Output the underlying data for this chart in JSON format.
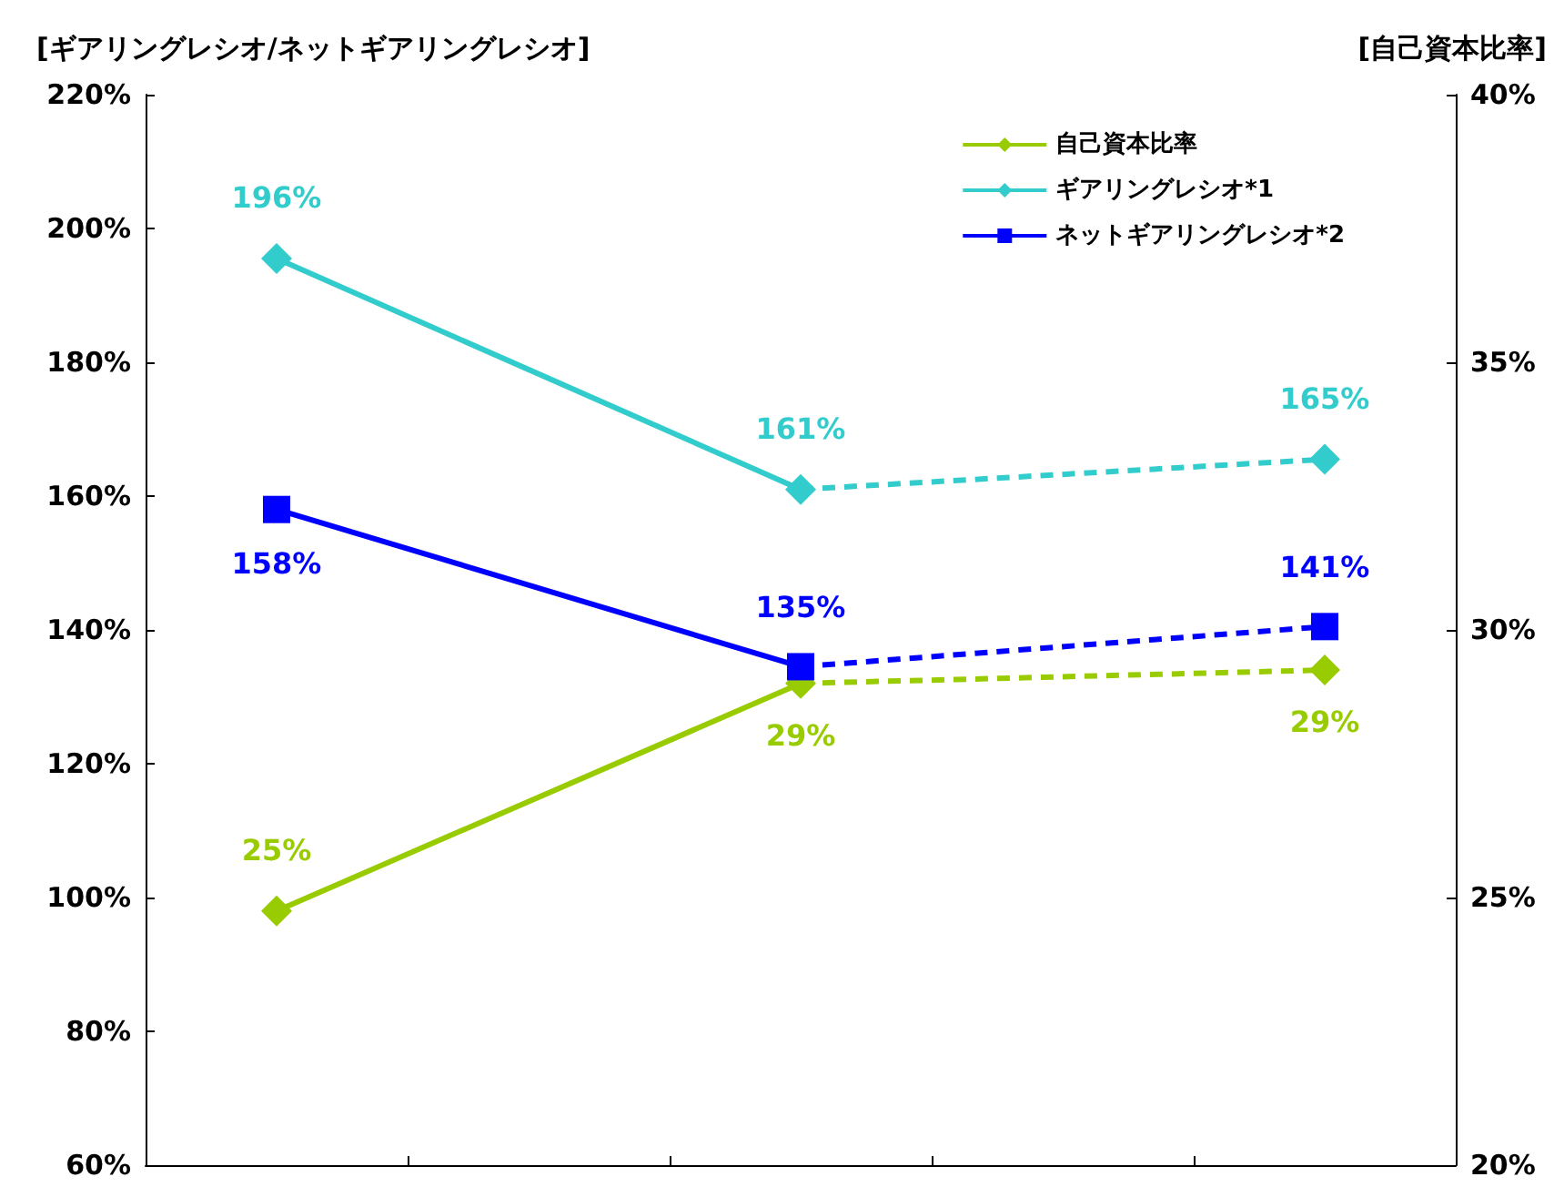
{
  "chart_data": {
    "type": "line",
    "ylabel": "[ギアリングレシオ/ネットギアリングレシオ]",
    "y2label": "[自己資本比率]",
    "categories": [
      null,
      null,
      null
    ],
    "series": [
      {
        "name": "自己資本比率",
        "color": "#99cc00",
        "axis": "y2",
        "marker": "diamond",
        "line_style": "dashed",
        "values": [
          24.75,
          29.0,
          29.25
        ],
        "value_labels": [
          "25%",
          "29%",
          "29%"
        ]
      },
      {
        "name": "ギアリングレシオ*1",
        "color": "#33cccc",
        "marker": "diamond",
        "line_style": "dashed",
        "values": [
          195.5,
          161,
          165.5
        ],
        "value_labels": [
          "196%",
          "161%",
          "165%"
        ]
      },
      {
        "name": "ネットギアリングレシオ*2",
        "color": "#0000ff",
        "marker": "square",
        "line_style": "dashed",
        "values": [
          158,
          134.5,
          140.5
        ],
        "value_labels": [
          "158%",
          "135%",
          "141%"
        ]
      }
    ],
    "ylim": [
      60,
      220
    ],
    "yticks": [
      {
        "value": 60,
        "label": "60%"
      },
      {
        "value": 80,
        "label": "80%"
      },
      {
        "value": 100,
        "label": "100%"
      },
      {
        "value": 120,
        "label": "120%"
      },
      {
        "value": 140,
        "label": "140%"
      },
      {
        "value": 160,
        "label": "160%"
      },
      {
        "value": 180,
        "label": "180%"
      },
      {
        "value": 200,
        "label": "200%"
      },
      {
        "value": 220,
        "label": "220%"
      }
    ],
    "y2lim": [
      20,
      40
    ],
    "y2ticks": [
      {
        "value": 20,
        "label": "20%"
      },
      {
        "value": 25,
        "label": "25%"
      },
      {
        "value": 30,
        "label": "30%"
      },
      {
        "value": 35,
        "label": "35%"
      },
      {
        "value": 40,
        "label": "40%"
      }
    ],
    "legend": "top right",
    "grid": false
  }
}
